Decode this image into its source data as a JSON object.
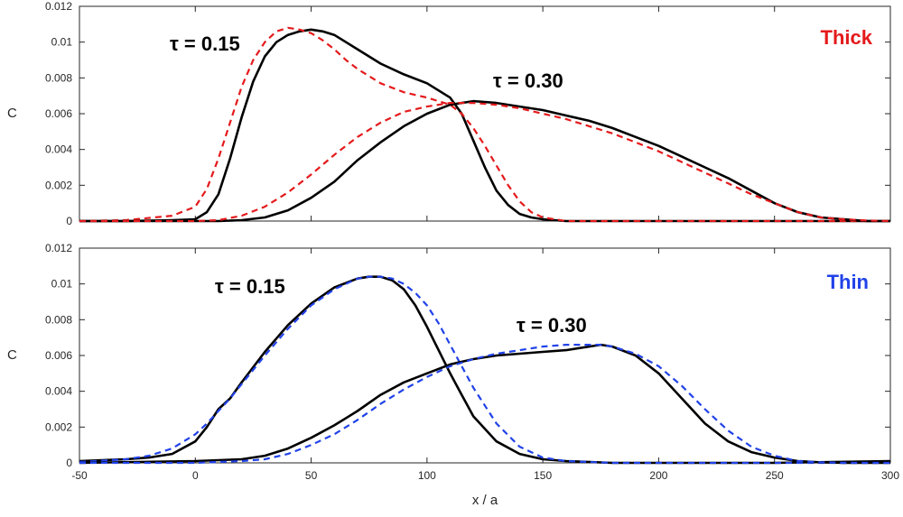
{
  "chart_data": [
    {
      "type": "line",
      "panel": "top",
      "ylabel": "C",
      "xlim": [
        -50,
        300
      ],
      "ylim": [
        0,
        0.012
      ],
      "yticks": [
        "0",
        "0.002",
        "0.004",
        "0.006",
        "0.008",
        "0.01",
        "0.012"
      ],
      "grid": false,
      "tag": "Thick",
      "tag_color": "#e41a1c",
      "fit_color": "#e41a1c",
      "data_color": "#000000",
      "annotations": [
        "τ = 0.15",
        "τ = 0.30"
      ],
      "series": [
        {
          "x": [
            -50,
            -30,
            -10,
            0,
            5,
            10,
            15,
            20,
            25,
            30,
            35,
            40,
            45,
            50,
            55,
            60,
            65,
            70,
            80,
            90,
            100,
            110,
            115,
            120,
            125,
            130,
            135,
            140,
            145,
            150,
            155,
            160,
            170,
            200,
            250,
            300
          ],
          "y": [
            0,
            0,
            5e-05,
            0.0001,
            0.0005,
            0.0015,
            0.0035,
            0.0058,
            0.0078,
            0.0092,
            0.01,
            0.0104,
            0.0106,
            0.0107,
            0.0106,
            0.0104,
            0.01,
            0.0096,
            0.0088,
            0.0082,
            0.0077,
            0.0069,
            0.006,
            0.0045,
            0.003,
            0.0017,
            0.0009,
            0.0004,
            0.0002,
            0.0001,
            5e-05,
            0,
            0,
            0,
            0,
            0
          ]
        },
        {
          "x": [
            -50,
            -30,
            -10,
            0,
            5,
            10,
            15,
            20,
            25,
            30,
            35,
            40,
            45,
            50,
            55,
            60,
            65,
            70,
            80,
            90,
            100,
            110,
            115,
            120,
            125,
            130,
            135,
            140,
            145,
            150,
            155,
            160,
            170,
            200,
            250,
            300
          ],
          "y": [
            0,
            5e-05,
            0.0003,
            0.0008,
            0.0018,
            0.0035,
            0.0055,
            0.0075,
            0.009,
            0.01,
            0.0106,
            0.0108,
            0.0107,
            0.0105,
            0.0101,
            0.0096,
            0.009,
            0.0085,
            0.0077,
            0.0072,
            0.0069,
            0.0065,
            0.006,
            0.0052,
            0.0042,
            0.0031,
            0.002,
            0.0011,
            0.0005,
            0.0002,
            0.0001,
            0,
            0,
            0,
            0,
            0
          ]
        },
        {
          "x": [
            -50,
            0,
            10,
            20,
            30,
            40,
            50,
            60,
            70,
            80,
            90,
            100,
            110,
            120,
            130,
            140,
            150,
            160,
            170,
            180,
            190,
            200,
            210,
            220,
            230,
            240,
            250,
            260,
            270,
            280,
            290,
            300
          ],
          "y": [
            0,
            0,
            0,
            5e-05,
            0.0002,
            0.0006,
            0.0013,
            0.0022,
            0.0034,
            0.0044,
            0.0053,
            0.006,
            0.0065,
            0.0067,
            0.0066,
            0.0064,
            0.0062,
            0.0059,
            0.0056,
            0.0052,
            0.0047,
            0.0042,
            0.0036,
            0.003,
            0.0024,
            0.0017,
            0.001,
            0.0005,
            0.0002,
            0.0001,
            0,
            0
          ]
        },
        {
          "x": [
            -50,
            0,
            10,
            20,
            30,
            40,
            50,
            60,
            70,
            80,
            90,
            100,
            110,
            120,
            130,
            140,
            150,
            160,
            170,
            180,
            190,
            200,
            210,
            220,
            230,
            240,
            250,
            260,
            270,
            280,
            290,
            300
          ],
          "y": [
            0,
            0,
            5e-05,
            0.0003,
            0.0008,
            0.0016,
            0.0026,
            0.0037,
            0.0047,
            0.0055,
            0.0061,
            0.0064,
            0.0066,
            0.0066,
            0.0065,
            0.0063,
            0.006,
            0.0057,
            0.0053,
            0.0049,
            0.0044,
            0.0039,
            0.0033,
            0.0027,
            0.0021,
            0.0015,
            0.001,
            0.0005,
            0.0002,
            0.0001,
            3e-05,
            0
          ]
        }
      ],
      "series_styles": [
        "data",
        "fit",
        "data",
        "fit"
      ]
    },
    {
      "type": "line",
      "panel": "bottom",
      "xlabel": "x / a",
      "ylabel": "C",
      "xlim": [
        -50,
        300
      ],
      "ylim": [
        0,
        0.012
      ],
      "xticks": [
        "-50",
        "0",
        "50",
        "100",
        "150",
        "200",
        "250",
        "300"
      ],
      "yticks": [
        "0",
        "0.002",
        "0.004",
        "0.006",
        "0.008",
        "0.01",
        "0.012"
      ],
      "grid": false,
      "tag": "Thin",
      "tag_color": "#2142e8",
      "fit_color": "#2142e8",
      "data_color": "#000000",
      "annotations": [
        "τ = 0.15",
        "τ = 0.30"
      ],
      "series": [
        {
          "x": [
            -50,
            -30,
            -20,
            -10,
            0,
            5,
            10,
            15,
            20,
            30,
            40,
            50,
            60,
            70,
            75,
            80,
            85,
            90,
            95,
            100,
            105,
            110,
            115,
            120,
            130,
            140,
            150,
            160,
            180,
            200,
            250,
            300
          ],
          "y": [
            0.0001,
            0.0002,
            0.0003,
            0.0005,
            0.0012,
            0.002,
            0.003,
            0.0036,
            0.0045,
            0.0062,
            0.0077,
            0.0089,
            0.0098,
            0.0103,
            0.0104,
            0.0104,
            0.0102,
            0.0097,
            0.0088,
            0.0076,
            0.0063,
            0.005,
            0.0038,
            0.0026,
            0.0012,
            0.0005,
            0.0002,
            0.0001,
            0,
            0,
            0,
            0.0001
          ]
        },
        {
          "x": [
            -50,
            -30,
            -20,
            -10,
            0,
            5,
            10,
            15,
            20,
            30,
            40,
            50,
            60,
            70,
            75,
            80,
            85,
            90,
            95,
            100,
            105,
            110,
            115,
            120,
            130,
            140,
            150,
            160,
            180,
            200,
            250,
            300
          ],
          "y": [
            5e-05,
            0.0002,
            0.0004,
            0.0008,
            0.0016,
            0.0022,
            0.0029,
            0.0036,
            0.0044,
            0.006,
            0.0075,
            0.0088,
            0.0097,
            0.0103,
            0.0104,
            0.0104,
            0.0103,
            0.01,
            0.0095,
            0.0088,
            0.0078,
            0.0066,
            0.0054,
            0.0042,
            0.0022,
            0.0009,
            0.0003,
            0.0001,
            0,
            0,
            0,
            0
          ]
        },
        {
          "x": [
            -50,
            0,
            20,
            30,
            40,
            50,
            60,
            70,
            80,
            90,
            100,
            110,
            120,
            130,
            140,
            150,
            160,
            170,
            175,
            180,
            190,
            200,
            210,
            220,
            230,
            240,
            250,
            260,
            270,
            280,
            300
          ],
          "y": [
            0,
            0.0001,
            0.0002,
            0.0004,
            0.0008,
            0.0014,
            0.0021,
            0.0029,
            0.0038,
            0.0045,
            0.005,
            0.0055,
            0.0058,
            0.006,
            0.0061,
            0.0062,
            0.0063,
            0.0065,
            0.0066,
            0.0065,
            0.006,
            0.005,
            0.0036,
            0.0022,
            0.0012,
            0.0006,
            0.0003,
            0.0001,
            3e-05,
            0,
            0
          ]
        },
        {
          "x": [
            -50,
            0,
            20,
            30,
            40,
            50,
            60,
            70,
            80,
            90,
            100,
            110,
            120,
            130,
            140,
            150,
            160,
            170,
            175,
            180,
            190,
            200,
            210,
            220,
            230,
            240,
            250,
            260,
            270,
            280,
            300
          ],
          "y": [
            0,
            0,
            0.0001,
            0.0002,
            0.0005,
            0.001,
            0.0016,
            0.0024,
            0.0033,
            0.0041,
            0.0048,
            0.0054,
            0.0058,
            0.0061,
            0.0063,
            0.0065,
            0.0066,
            0.0066,
            0.0066,
            0.0065,
            0.0061,
            0.0054,
            0.0043,
            0.003,
            0.0018,
            0.0009,
            0.0004,
            0.0001,
            3e-05,
            0,
            0
          ]
        }
      ],
      "series_styles": [
        "data",
        "fit",
        "data",
        "fit"
      ]
    }
  ]
}
